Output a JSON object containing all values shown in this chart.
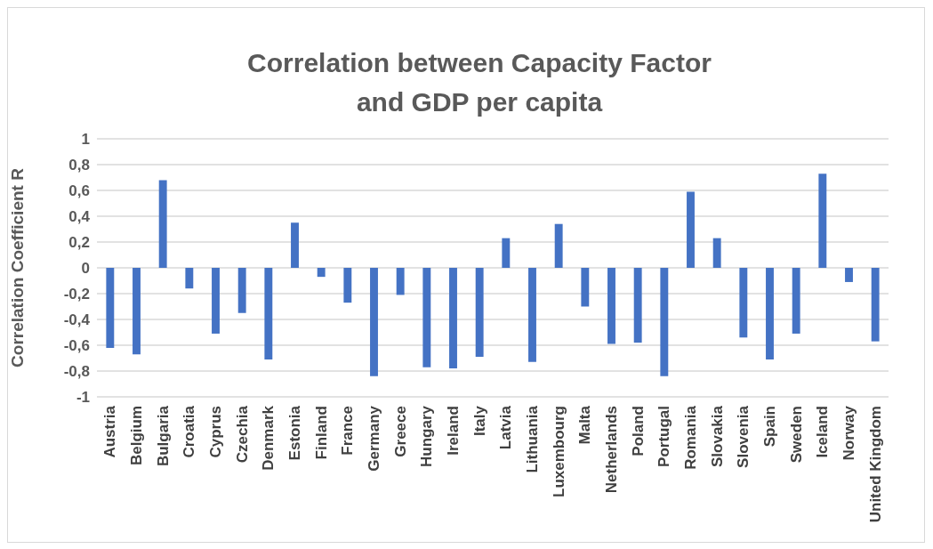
{
  "chart_data": {
    "type": "bar",
    "title": "Correlation between Capacity Factor and GDP per capita",
    "ylabel": "Correlation Coefficient R",
    "categories": [
      "Austria",
      "Belgium",
      "Bulgaria",
      "Croatia",
      "Cyprus",
      "Czechia",
      "Denmark",
      "Estonia",
      "Finland",
      "France",
      "Germany",
      "Greece",
      "Hungary",
      "Ireland",
      "Italy",
      "Latvia",
      "Lithuania",
      "Luxembourg",
      "Malta",
      "Netherlands",
      "Poland",
      "Portugal",
      "Romania",
      "Slovakia",
      "Slovenia",
      "Spain",
      "Sweden",
      "Iceland",
      "Norway",
      "United Kingdom"
    ],
    "values": [
      -0.62,
      -0.67,
      0.68,
      -0.16,
      -0.51,
      -0.35,
      -0.71,
      0.35,
      -0.07,
      -0.27,
      -0.84,
      -0.21,
      -0.77,
      -0.78,
      -0.69,
      0.23,
      -0.73,
      0.34,
      -0.3,
      -0.59,
      -0.58,
      -0.84,
      0.59,
      0.23,
      -0.54,
      -0.71,
      -0.51,
      0.73,
      -0.11,
      -0.57
    ],
    "color": "#4472c4",
    "ylim": [
      -1,
      1
    ],
    "yticks": [
      {
        "value": -1,
        "label": "-1"
      },
      {
        "value": -0.8,
        "label": "-0,8"
      },
      {
        "value": -0.6,
        "label": "-0,6"
      },
      {
        "value": -0.4,
        "label": "-0,4"
      },
      {
        "value": -0.2,
        "label": "-0,2"
      },
      {
        "value": 0,
        "label": "0"
      },
      {
        "value": 0.2,
        "label": "0,2"
      },
      {
        "value": 0.4,
        "label": "0,4"
      },
      {
        "value": 0.6,
        "label": "0,6"
      },
      {
        "value": 0.8,
        "label": "0,8"
      },
      {
        "value": 1,
        "label": "1"
      }
    ],
    "grid": "y"
  }
}
